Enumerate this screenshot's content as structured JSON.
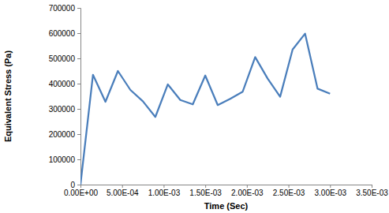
{
  "chart_data": {
    "type": "line",
    "x_label": "Time (Sec)",
    "y_label": "Equivalent Stress (Pa)",
    "x": [
      0,
      0.00015,
      0.0003,
      0.00045,
      0.0006,
      0.00075,
      0.0009,
      0.00105,
      0.0012,
      0.00135,
      0.0015,
      0.00165,
      0.0018,
      0.00195,
      0.0021,
      0.00225,
      0.0024,
      0.00255,
      0.0027,
      0.00285,
      0.003
    ],
    "values": [
      0,
      435000,
      328000,
      450000,
      375000,
      330000,
      268000,
      397000,
      335000,
      318000,
      432000,
      315000,
      340000,
      368000,
      505000,
      420000,
      348000,
      535000,
      598000,
      380000,
      360000
    ],
    "color": "#4a7ebb",
    "xlim": [
      0,
      0.0035
    ],
    "xticks": [
      {
        "value": 0,
        "label": "0.00E+00"
      },
      {
        "value": 0.0005,
        "label": "5.00E-04"
      },
      {
        "value": 0.001,
        "label": "1.00E-03"
      },
      {
        "value": 0.0015,
        "label": "1.50E-03"
      },
      {
        "value": 0.002,
        "label": "2.00E-03"
      },
      {
        "value": 0.0025,
        "label": "2.50E-03"
      },
      {
        "value": 0.003,
        "label": "3.00E-03"
      },
      {
        "value": 0.0035,
        "label": "3.50E-03"
      }
    ],
    "ylim": [
      0,
      700000
    ],
    "yticks": [
      0,
      100000,
      200000,
      300000,
      400000,
      500000,
      600000,
      700000
    ],
    "grid": false
  }
}
